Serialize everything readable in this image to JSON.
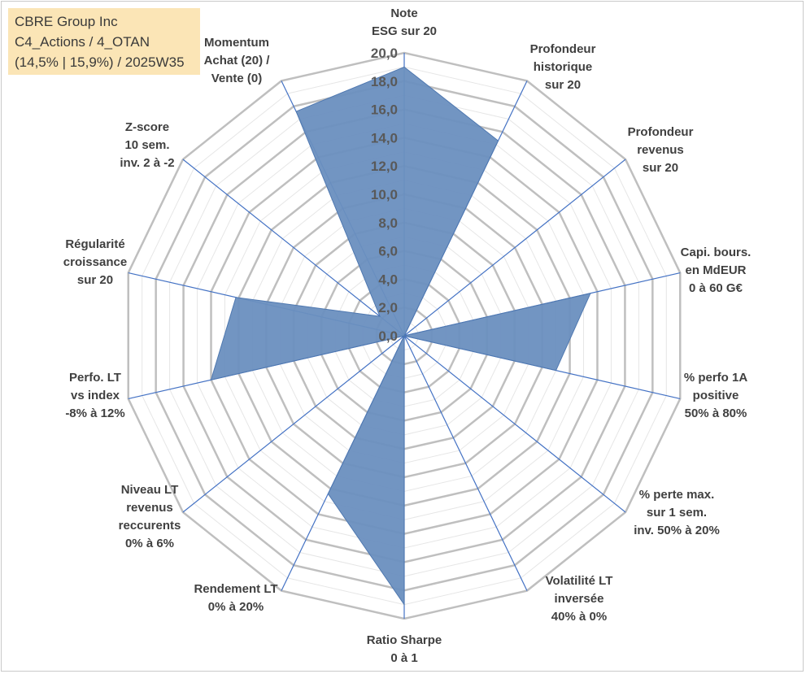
{
  "title": {
    "line1": "CBRE Group Inc",
    "line2": "C4_Actions / 4_OTAN",
    "line3": "(14,5% | 15,9%) / 2025W35"
  },
  "colors": {
    "fill": "#6a8fbf",
    "stroke": "#4f78b0",
    "spoke": "#4472c4",
    "grid_major": "#bfbfbf",
    "grid_minor": "#e6e6e6"
  },
  "chart_data": {
    "type": "radar",
    "rmin": 0,
    "rmax": 20,
    "major_step": 2,
    "minor_step": 1,
    "tick_labels": [
      "0,0",
      "2,0",
      "4,0",
      "6,0",
      "8,0",
      "10,0",
      "12,0",
      "14,0",
      "16,0",
      "18,0",
      "20,0"
    ],
    "axes": [
      {
        "label": [
          "Note",
          "ESG sur 20"
        ],
        "value": 19
      },
      {
        "label": [
          "Profondeur",
          "historique",
          "sur 20"
        ],
        "value": 15.3
      },
      {
        "label": [
          "Profondeur",
          "revenus",
          "sur 20"
        ],
        "value": 0
      },
      {
        "label": [
          "Capi. bours.",
          "en MdEUR",
          "0 à 60 G€"
        ],
        "value": 13.5
      },
      {
        "label": [
          "% perfo 1A",
          "positive",
          "50% à 80%"
        ],
        "value": 11.0
      },
      {
        "label": [
          "% perte max.",
          "sur 1 sem.",
          "inv. 50% à 20%"
        ],
        "value": 0
      },
      {
        "label": [
          "Volatilité LT",
          "inversée",
          "40% à 0%"
        ],
        "value": 0
      },
      {
        "label": [
          "Ratio Sharpe",
          "0 à 1"
        ],
        "value": 19
      },
      {
        "label": [
          "Rendement LT",
          "0% à 20%"
        ],
        "value": 12.4
      },
      {
        "label": [
          "Niveau LT",
          "revenus",
          "reccurents",
          "0% à 6%"
        ],
        "value": 0
      },
      {
        "label": [
          "Perfo. LT",
          "vs index",
          "-8% à 12%"
        ],
        "value": 14.0
      },
      {
        "label": [
          "Régularité",
          "croissance",
          "sur 20"
        ],
        "value": 12.2
      },
      {
        "label": [
          "Z-score",
          "10 sem.",
          "inv. 2 à -2"
        ],
        "value": 2.2
      },
      {
        "label": [
          "Momentum",
          "Achat (20) /",
          "Vente (0)"
        ],
        "value": 17.6
      }
    ]
  }
}
